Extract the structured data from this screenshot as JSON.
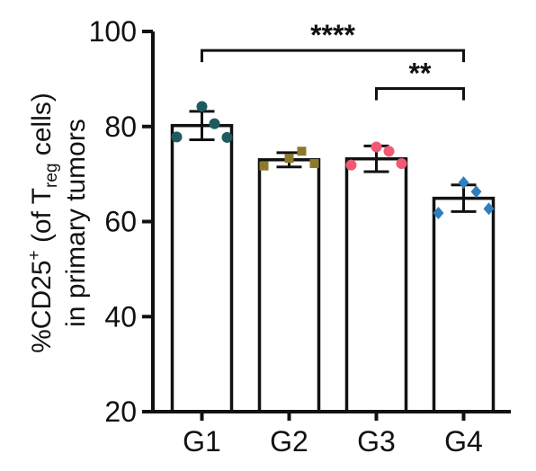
{
  "chart_data": {
    "type": "bar",
    "ylabel_line1_pre": "%CD25",
    "ylabel_line1_sup": "+",
    "ylabel_line1_mid": " (of T",
    "ylabel_line1_sub": "reg",
    "ylabel_line1_post": " cells)",
    "ylabel_line2": "in primary tumors",
    "xlabel": "",
    "ylim": [
      20,
      100
    ],
    "yticks": [
      20,
      40,
      60,
      80,
      100
    ],
    "categories": [
      "G1",
      "G2",
      "G3",
      "G4"
    ],
    "values": [
      80.2,
      73.0,
      73.2,
      64.9
    ],
    "errors": [
      3.0,
      1.5,
      2.7,
      2.8
    ],
    "point_colors": [
      "#1f5a5e",
      "#8b7a2e",
      "#f05a72",
      "#2f7fbf"
    ],
    "point_shapes": [
      "circle",
      "square",
      "circle",
      "diamond"
    ],
    "points": [
      [
        84.2,
        80.6,
        77.8,
        77.7
      ],
      [
        73.3,
        74.8,
        71.7,
        72.2
      ],
      [
        75.7,
        74.8,
        71.9,
        72.2
      ],
      [
        68.2,
        66.3,
        61.8,
        62.7
      ]
    ],
    "significance": [
      {
        "from": 0,
        "to": 3,
        "label": "****",
        "y": 96
      },
      {
        "from": 2,
        "to": 3,
        "label": "**",
        "y": 88
      }
    ]
  }
}
